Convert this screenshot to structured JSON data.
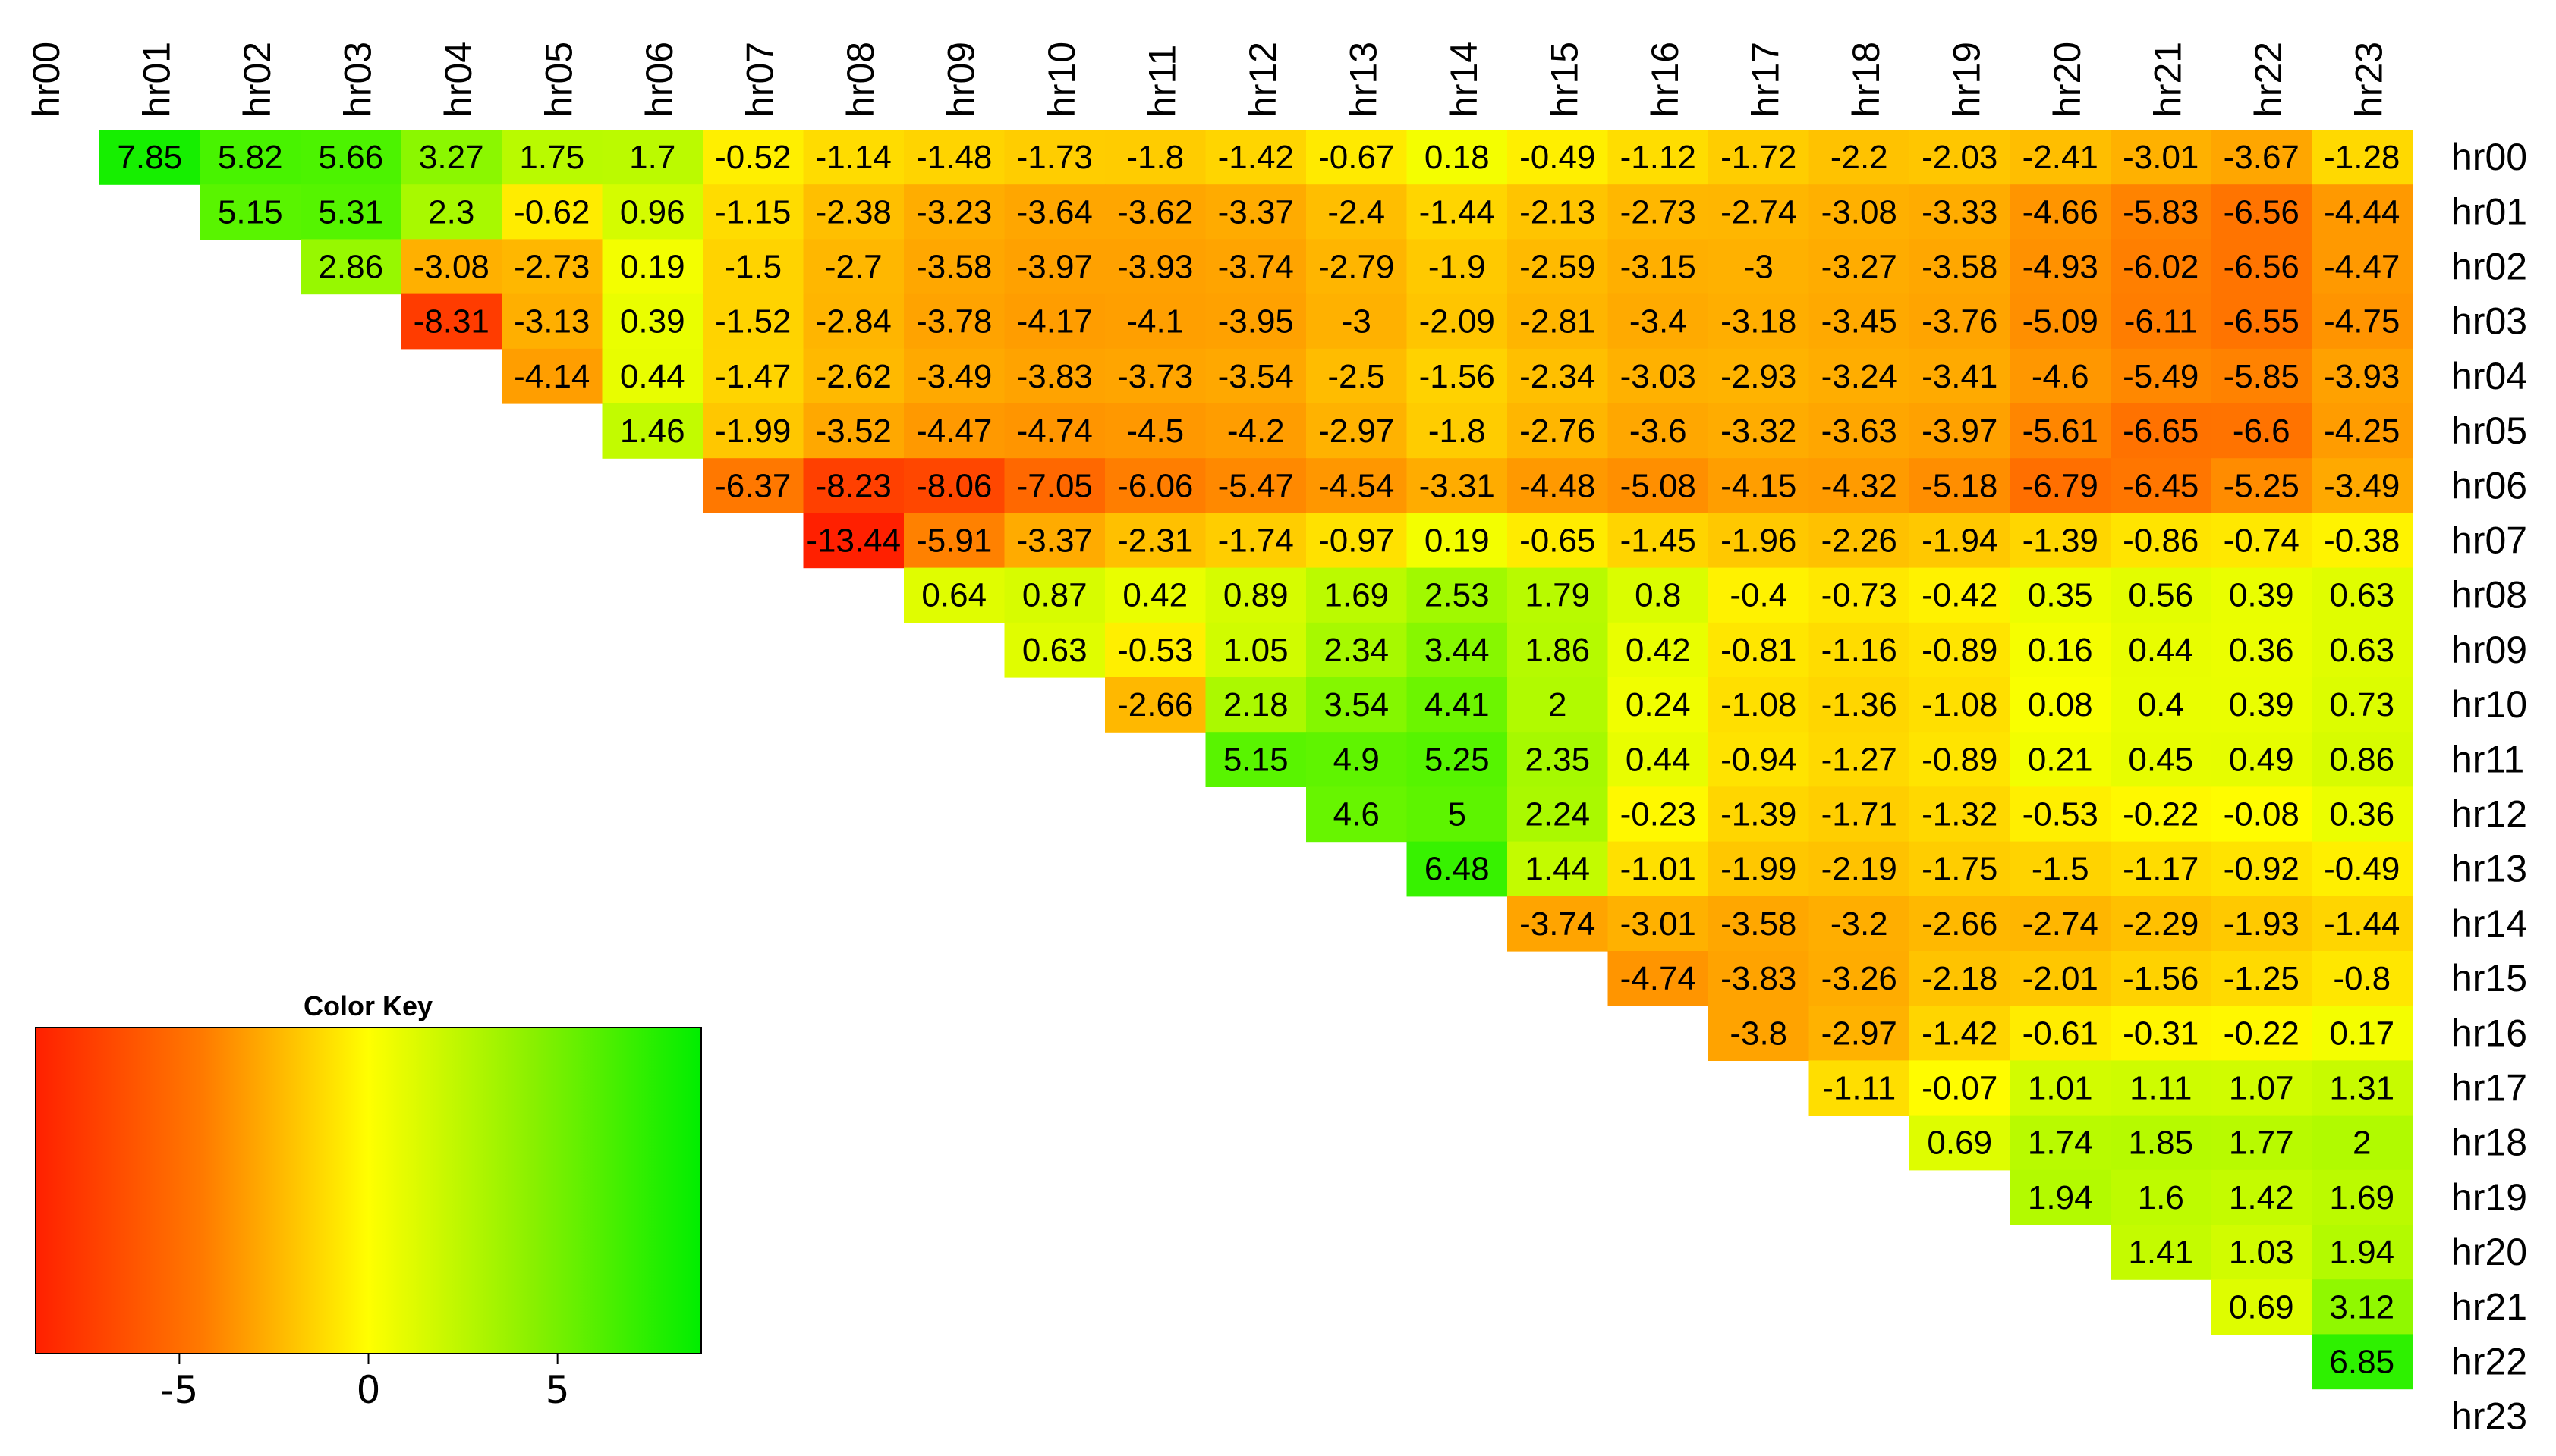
{
  "chart_data": {
    "type": "heatmap",
    "title": "",
    "xlabel": "",
    "ylabel": "",
    "columns": [
      "hr00",
      "hr01",
      "hr02",
      "hr03",
      "hr04",
      "hr05",
      "hr06",
      "hr07",
      "hr08",
      "hr09",
      "hr10",
      "hr11",
      "hr12",
      "hr13",
      "hr14",
      "hr15",
      "hr16",
      "hr17",
      "hr18",
      "hr19",
      "hr20",
      "hr21",
      "hr22",
      "hr23"
    ],
    "rows": [
      "hr00",
      "hr01",
      "hr02",
      "hr03",
      "hr04",
      "hr05",
      "hr06",
      "hr07",
      "hr08",
      "hr09",
      "hr10",
      "hr11",
      "hr12",
      "hr13",
      "hr14",
      "hr15",
      "hr16",
      "hr17",
      "hr18",
      "hr19",
      "hr20",
      "hr21",
      "hr22",
      "hr23"
    ],
    "values": [
      [
        null,
        "7.85",
        "5.82",
        "5.66",
        "3.27",
        "1.75",
        "1.7",
        "-0.52",
        "-1.14",
        "-1.48",
        "-1.73",
        "-1.8",
        "-1.42",
        "-0.67",
        "0.18",
        "-0.49",
        "-1.12",
        "-1.72",
        "-2.2",
        "-2.03",
        "-2.41",
        "-3.01",
        "-3.67",
        "-1.28"
      ],
      [
        null,
        null,
        "5.15",
        "5.31",
        "2.3",
        "-0.62",
        "0.96",
        "-1.15",
        "-2.38",
        "-3.23",
        "-3.64",
        "-3.62",
        "-3.37",
        "-2.4",
        "-1.44",
        "-2.13",
        "-2.73",
        "-2.74",
        "-3.08",
        "-3.33",
        "-4.66",
        "-5.83",
        "-6.56",
        "-4.44"
      ],
      [
        null,
        null,
        null,
        "2.86",
        "-3.08",
        "-2.73",
        "0.19",
        "-1.5",
        "-2.7",
        "-3.58",
        "-3.97",
        "-3.93",
        "-3.74",
        "-2.79",
        "-1.9",
        "-2.59",
        "-3.15",
        "-3",
        "-3.27",
        "-3.58",
        "-4.93",
        "-6.02",
        "-6.56",
        "-4.47"
      ],
      [
        null,
        null,
        null,
        null,
        "-8.31",
        "-3.13",
        "0.39",
        "-1.52",
        "-2.84",
        "-3.78",
        "-4.17",
        "-4.1",
        "-3.95",
        "-3",
        "-2.09",
        "-2.81",
        "-3.4",
        "-3.18",
        "-3.45",
        "-3.76",
        "-5.09",
        "-6.11",
        "-6.55",
        "-4.75"
      ],
      [
        null,
        null,
        null,
        null,
        null,
        "-4.14",
        "0.44",
        "-1.47",
        "-2.62",
        "-3.49",
        "-3.83",
        "-3.73",
        "-3.54",
        "-2.5",
        "-1.56",
        "-2.34",
        "-3.03",
        "-2.93",
        "-3.24",
        "-3.41",
        "-4.6",
        "-5.49",
        "-5.85",
        "-3.93"
      ],
      [
        null,
        null,
        null,
        null,
        null,
        null,
        "1.46",
        "-1.99",
        "-3.52",
        "-4.47",
        "-4.74",
        "-4.5",
        "-4.2",
        "-2.97",
        "-1.8",
        "-2.76",
        "-3.6",
        "-3.32",
        "-3.63",
        "-3.97",
        "-5.61",
        "-6.65",
        "-6.6",
        "-4.25"
      ],
      [
        null,
        null,
        null,
        null,
        null,
        null,
        null,
        "-6.37",
        "-8.23",
        "-8.06",
        "-7.05",
        "-6.06",
        "-5.47",
        "-4.54",
        "-3.31",
        "-4.48",
        "-5.08",
        "-4.15",
        "-4.32",
        "-5.18",
        "-6.79",
        "-6.45",
        "-5.25",
        "-3.49"
      ],
      [
        null,
        null,
        null,
        null,
        null,
        null,
        null,
        null,
        "-13.44",
        "-5.91",
        "-3.37",
        "-2.31",
        "-1.74",
        "-0.97",
        "0.19",
        "-0.65",
        "-1.45",
        "-1.96",
        "-2.26",
        "-1.94",
        "-1.39",
        "-0.86",
        "-0.74",
        "-0.38"
      ],
      [
        null,
        null,
        null,
        null,
        null,
        null,
        null,
        null,
        null,
        "0.64",
        "0.87",
        "0.42",
        "0.89",
        "1.69",
        "2.53",
        "1.79",
        "0.8",
        "-0.4",
        "-0.73",
        "-0.42",
        "0.35",
        "0.56",
        "0.39",
        "0.63"
      ],
      [
        null,
        null,
        null,
        null,
        null,
        null,
        null,
        null,
        null,
        null,
        "0.63",
        "-0.53",
        "1.05",
        "2.34",
        "3.44",
        "1.86",
        "0.42",
        "-0.81",
        "-1.16",
        "-0.89",
        "0.16",
        "0.44",
        "0.36",
        "0.63"
      ],
      [
        null,
        null,
        null,
        null,
        null,
        null,
        null,
        null,
        null,
        null,
        null,
        "-2.66",
        "2.18",
        "3.54",
        "4.41",
        "2",
        "0.24",
        "-1.08",
        "-1.36",
        "-1.08",
        "0.08",
        "0.4",
        "0.39",
        "0.73"
      ],
      [
        null,
        null,
        null,
        null,
        null,
        null,
        null,
        null,
        null,
        null,
        null,
        null,
        "5.15",
        "4.9",
        "5.25",
        "2.35",
        "0.44",
        "-0.94",
        "-1.27",
        "-0.89",
        "0.21",
        "0.45",
        "0.49",
        "0.86"
      ],
      [
        null,
        null,
        null,
        null,
        null,
        null,
        null,
        null,
        null,
        null,
        null,
        null,
        null,
        "4.6",
        "5",
        "2.24",
        "-0.23",
        "-1.39",
        "-1.71",
        "-1.32",
        "-0.53",
        "-0.22",
        "-0.08",
        "0.36"
      ],
      [
        null,
        null,
        null,
        null,
        null,
        null,
        null,
        null,
        null,
        null,
        null,
        null,
        null,
        null,
        "6.48",
        "1.44",
        "-1.01",
        "-1.99",
        "-2.19",
        "-1.75",
        "-1.5",
        "-1.17",
        "-0.92",
        "-0.49"
      ],
      [
        null,
        null,
        null,
        null,
        null,
        null,
        null,
        null,
        null,
        null,
        null,
        null,
        null,
        null,
        null,
        "-3.74",
        "-3.01",
        "-3.58",
        "-3.2",
        "-2.66",
        "-2.74",
        "-2.29",
        "-1.93",
        "-1.44"
      ],
      [
        null,
        null,
        null,
        null,
        null,
        null,
        null,
        null,
        null,
        null,
        null,
        null,
        null,
        null,
        null,
        null,
        "-4.74",
        "-3.83",
        "-3.26",
        "-2.18",
        "-2.01",
        "-1.56",
        "-1.25",
        "-0.8"
      ],
      [
        null,
        null,
        null,
        null,
        null,
        null,
        null,
        null,
        null,
        null,
        null,
        null,
        null,
        null,
        null,
        null,
        null,
        "-3.8",
        "-2.97",
        "-1.42",
        "-0.61",
        "-0.31",
        "-0.22",
        "0.17"
      ],
      [
        null,
        null,
        null,
        null,
        null,
        null,
        null,
        null,
        null,
        null,
        null,
        null,
        null,
        null,
        null,
        null,
        null,
        null,
        "-1.11",
        "-0.07",
        "1.01",
        "1.11",
        "1.07",
        "1.31"
      ],
      [
        null,
        null,
        null,
        null,
        null,
        null,
        null,
        null,
        null,
        null,
        null,
        null,
        null,
        null,
        null,
        null,
        null,
        null,
        null,
        "0.69",
        "1.74",
        "1.85",
        "1.77",
        "2"
      ],
      [
        null,
        null,
        null,
        null,
        null,
        null,
        null,
        null,
        null,
        null,
        null,
        null,
        null,
        null,
        null,
        null,
        null,
        null,
        null,
        null,
        "1.94",
        "1.6",
        "1.42",
        "1.69"
      ],
      [
        null,
        null,
        null,
        null,
        null,
        null,
        null,
        null,
        null,
        null,
        null,
        null,
        null,
        null,
        null,
        null,
        null,
        null,
        null,
        null,
        null,
        "1.41",
        "1.03",
        "1.94"
      ],
      [
        null,
        null,
        null,
        null,
        null,
        null,
        null,
        null,
        null,
        null,
        null,
        null,
        null,
        null,
        null,
        null,
        null,
        null,
        null,
        null,
        null,
        null,
        "0.69",
        "3.12"
      ],
      [
        null,
        null,
        null,
        null,
        null,
        null,
        null,
        null,
        null,
        null,
        null,
        null,
        null,
        null,
        null,
        null,
        null,
        null,
        null,
        null,
        null,
        null,
        null,
        "6.85"
      ],
      [
        null,
        null,
        null,
        null,
        null,
        null,
        null,
        null,
        null,
        null,
        null,
        null,
        null,
        null,
        null,
        null,
        null,
        null,
        null,
        null,
        null,
        null,
        null,
        null
      ]
    ],
    "color_scale": {
      "low_color": "#ff2000",
      "mid_color": "#ffff00",
      "high_color": "#00ee00",
      "min": -8.8,
      "mid": 0,
      "max": 8.8
    },
    "legend": {
      "title": "Color Key",
      "placement": "bottom-left",
      "ticks": [
        {
          "value": -5,
          "label": "-5"
        },
        {
          "value": 0,
          "label": "0"
        },
        {
          "value": 5,
          "label": "5"
        }
      ]
    },
    "grid": false
  }
}
